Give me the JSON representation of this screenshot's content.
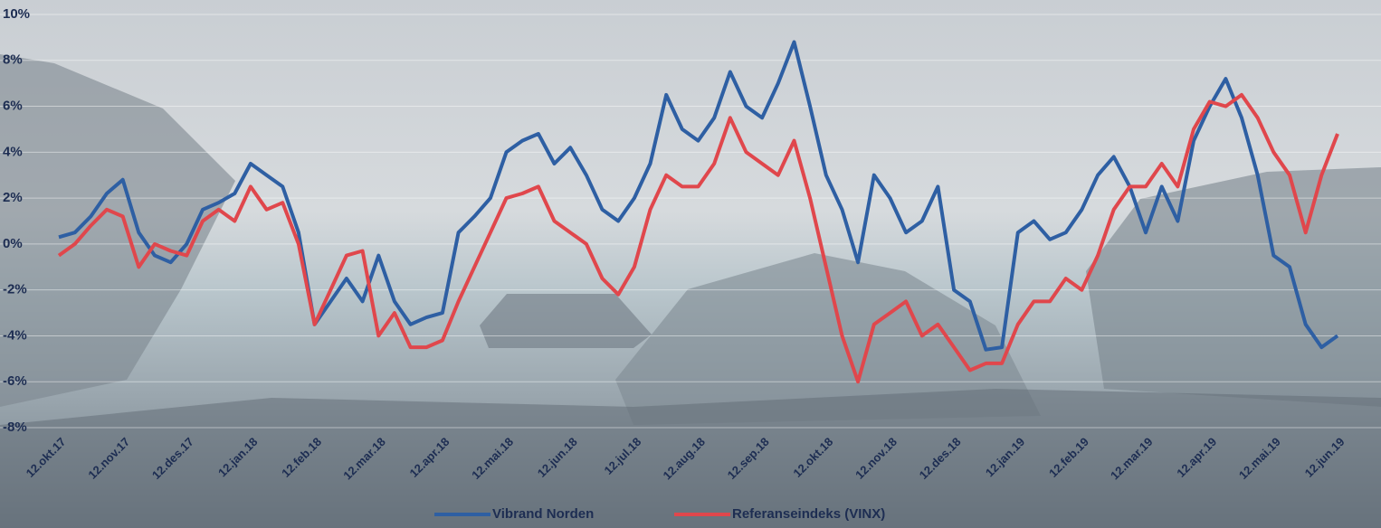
{
  "chart_data": {
    "type": "line",
    "categories": [
      "12.okt.17",
      null,
      null,
      null,
      "12.nov.17",
      null,
      null,
      null,
      "12.des.17",
      null,
      null,
      null,
      "12.jan.18",
      null,
      null,
      null,
      "12.feb.18",
      null,
      null,
      null,
      "12.mar.18",
      null,
      null,
      null,
      "12.apr.18",
      null,
      null,
      null,
      "12.mai.18",
      null,
      null,
      null,
      "12.jun.18",
      null,
      null,
      null,
      "12.jul.18",
      null,
      null,
      null,
      "12.aug.18",
      null,
      null,
      null,
      "12.sep.18",
      null,
      null,
      null,
      "12.okt.18",
      null,
      null,
      null,
      "12.nov.18",
      null,
      null,
      null,
      "12.des.18",
      null,
      null,
      null,
      "12.jan.19",
      null,
      null,
      null,
      "12.feb.19",
      null,
      null,
      null,
      "12.mar.19",
      null,
      null,
      null,
      "12.apr.19",
      null,
      null,
      null,
      "12.mai.19",
      null,
      null,
      null,
      "12.jun.19"
    ],
    "series": [
      {
        "name": "Vibrand Norden",
        "color": "#2e5fa3",
        "values": [
          0.3,
          0.5,
          1.2,
          2.2,
          2.8,
          0.5,
          -0.5,
          -0.8,
          0.0,
          1.5,
          1.8,
          2.2,
          3.5,
          3.0,
          2.5,
          0.5,
          -3.5,
          -2.5,
          -1.5,
          -2.5,
          -0.5,
          -2.5,
          -3.5,
          -3.2,
          -3.0,
          0.5,
          1.2,
          2.0,
          4.0,
          4.5,
          4.8,
          3.5,
          4.2,
          3.0,
          1.5,
          1.0,
          2.0,
          3.5,
          6.5,
          5.0,
          4.5,
          5.5,
          7.5,
          6.0,
          5.5,
          7.0,
          8.8,
          6.0,
          3.0,
          1.5,
          -0.8,
          3.0,
          2.0,
          0.5,
          1.0,
          2.5,
          -2.0,
          -2.5,
          -4.6,
          -4.5,
          0.5,
          1.0,
          0.2,
          0.5,
          1.5,
          3.0,
          3.8,
          2.5,
          0.5,
          2.5,
          1.0,
          4.5,
          6.0,
          7.2,
          5.5,
          3.0,
          -0.5,
          -1.0,
          -3.5,
          -4.5,
          -4.0
        ]
      },
      {
        "name": "Referanseindeks (VINX)",
        "color": "#e0474c",
        "values": [
          -0.5,
          0.0,
          0.8,
          1.5,
          1.2,
          -1.0,
          0.0,
          -0.3,
          -0.5,
          1.0,
          1.5,
          1.0,
          2.5,
          1.5,
          1.8,
          0.0,
          -3.5,
          -2.0,
          -0.5,
          -0.3,
          -4.0,
          -3.0,
          -4.5,
          -4.5,
          -4.2,
          -2.5,
          -1.0,
          0.5,
          2.0,
          2.2,
          2.5,
          1.0,
          0.5,
          0.0,
          -1.5,
          -2.2,
          -1.0,
          1.5,
          3.0,
          2.5,
          2.5,
          3.5,
          5.5,
          4.0,
          3.5,
          3.0,
          4.5,
          2.0,
          -1.0,
          -4.0,
          -6.0,
          -3.5,
          -3.0,
          -2.5,
          -4.0,
          -3.5,
          -4.5,
          -5.5,
          -5.2,
          -5.2,
          -3.5,
          -2.5,
          -2.5,
          -1.5,
          -2.0,
          -0.5,
          1.5,
          2.5,
          2.5,
          3.5,
          2.5,
          5.0,
          6.2,
          6.0,
          6.5,
          5.5,
          4.0,
          3.0,
          0.5,
          3.0,
          4.8
        ]
      }
    ],
    "ylim": [
      -8,
      10
    ],
    "yticks": [
      {
        "value": -8,
        "label": "-8%"
      },
      {
        "value": -6,
        "label": "-6%"
      },
      {
        "value": -4,
        "label": "-4%"
      },
      {
        "value": -2,
        "label": "-2%"
      },
      {
        "value": 0,
        "label": "0%"
      },
      {
        "value": 2,
        "label": "2%"
      },
      {
        "value": 4,
        "label": "4%"
      },
      {
        "value": 6,
        "label": "6%"
      },
      {
        "value": 8,
        "label": "8%"
      },
      {
        "value": 10,
        "label": "10%"
      }
    ],
    "grid": true,
    "legend": "bottom"
  }
}
